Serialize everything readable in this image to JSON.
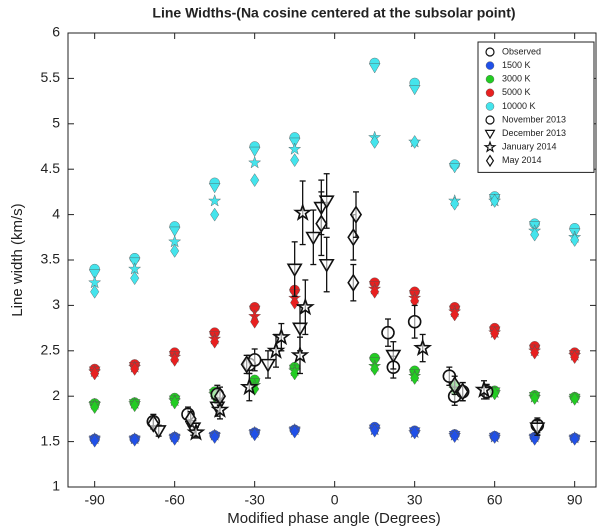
{
  "chart_data": {
    "type": "scatter",
    "title": "Line Widths-(Na cosine centered at the subsolar point)",
    "x_label": "Modified phase angle (Degrees)",
    "y_label": "Line width (km/s)",
    "xlim": [
      -100,
      98
    ],
    "ylim": [
      1,
      6
    ],
    "xticks": [
      -90,
      -60,
      -30,
      0,
      30,
      60,
      90
    ],
    "yticks": [
      1,
      1.5,
      2,
      2.5,
      3,
      3.5,
      4,
      4.5,
      5,
      5.5,
      6
    ],
    "legend": "upper right",
    "observed_label": "Observed",
    "model_x": [
      -90,
      -75,
      -60,
      -45,
      -30,
      -15,
      15,
      30,
      45,
      60,
      75,
      90
    ],
    "models": [
      {
        "name": "1500 K",
        "color": "#2050e8",
        "values": [
          [
            1.53,
            1.53,
            1.55,
            1.57,
            1.6,
            1.63,
            1.66,
            1.62,
            1.58,
            1.56,
            1.55,
            1.54
          ],
          [
            1.52,
            1.52,
            1.54,
            1.56,
            1.59,
            1.62,
            1.64,
            1.61,
            1.57,
            1.55,
            1.54,
            1.53
          ],
          [
            1.53,
            1.53,
            1.55,
            1.57,
            1.6,
            1.63,
            1.63,
            1.6,
            1.57,
            1.55,
            1.55,
            1.54
          ],
          [
            1.51,
            1.52,
            1.53,
            1.55,
            1.58,
            1.61,
            1.62,
            1.6,
            1.56,
            1.55,
            1.53,
            1.53
          ]
        ]
      },
      {
        "name": "3000 K",
        "color": "#22cc22",
        "values": [
          [
            1.92,
            1.93,
            1.98,
            2.05,
            2.18,
            2.32,
            2.42,
            2.28,
            2.12,
            2.06,
            2.01,
            1.99
          ],
          [
            1.9,
            1.92,
            1.96,
            2.03,
            2.15,
            2.3,
            2.38,
            2.25,
            2.1,
            2.05,
            2,
            1.98
          ],
          [
            1.91,
            1.92,
            1.95,
            2.02,
            2.12,
            2.28,
            2.33,
            2.22,
            2.08,
            2.04,
            1.99,
            1.98
          ],
          [
            1.88,
            1.9,
            1.93,
            2,
            2.08,
            2.25,
            2.3,
            2.2,
            2.06,
            2.03,
            1.98,
            1.97
          ]
        ]
      },
      {
        "name": "5000 K",
        "color": "#e82020",
        "values": [
          [
            2.3,
            2.35,
            2.48,
            2.7,
            2.98,
            3.17,
            3.25,
            3.15,
            2.98,
            2.75,
            2.55,
            2.48
          ],
          [
            2.28,
            2.33,
            2.45,
            2.67,
            2.95,
            3.13,
            3.22,
            3.12,
            2.95,
            2.72,
            2.52,
            2.46
          ],
          [
            2.27,
            2.32,
            2.43,
            2.63,
            2.88,
            3.08,
            3.18,
            3.08,
            2.93,
            2.7,
            2.5,
            2.45
          ],
          [
            2.25,
            2.3,
            2.4,
            2.6,
            2.82,
            3.03,
            3.15,
            3.05,
            2.9,
            2.69,
            2.48,
            2.43
          ]
        ]
      },
      {
        "name": "10000 K",
        "color": "#44e4ec",
        "values": [
          [
            3.4,
            3.52,
            3.87,
            4.35,
            4.75,
            4.85,
            5.67,
            5.45,
            4.55,
            4.2,
            3.9,
            3.85
          ],
          [
            3.35,
            3.48,
            3.82,
            4.3,
            4.7,
            4.8,
            5.62,
            5.38,
            4.52,
            4.18,
            3.88,
            3.8
          ],
          [
            3.25,
            3.4,
            3.7,
            4.15,
            4.57,
            4.72,
            4.85,
            4.8,
            4.15,
            4.15,
            3.82,
            3.75
          ],
          [
            3.15,
            3.3,
            3.6,
            4,
            4.38,
            4.6,
            4.8,
            4.8,
            4.12,
            4.15,
            3.78,
            3.72
          ]
        ]
      }
    ],
    "series": [
      {
        "name": "November 2013",
        "marker": "circle",
        "x": [
          -68,
          -55,
          -44,
          -32,
          -30,
          20,
          22,
          30,
          43,
          45,
          48,
          57,
          76
        ],
        "values": [
          1.72,
          1.8,
          2.02,
          2.35,
          2.4,
          2.7,
          2.32,
          2.82,
          2.22,
          2,
          2.05,
          2.05,
          1.68
        ],
        "errors": [
          0.08,
          0.08,
          0.1,
          0.1,
          0.12,
          0.15,
          0.12,
          0.18,
          0.1,
          0.1,
          0.1,
          0.08,
          0.08
        ]
      },
      {
        "name": "December 2013",
        "marker": "triangle",
        "x": [
          -66,
          -53,
          -44,
          -25,
          -15,
          -13,
          -8,
          -5,
          -3,
          -3,
          22,
          76
        ],
        "values": [
          1.62,
          1.65,
          1.88,
          2.35,
          3.4,
          2.75,
          3.75,
          4.08,
          4.15,
          3.45,
          2.45,
          1.65
        ],
        "errors": [
          0.06,
          0.08,
          0.1,
          0.15,
          0.3,
          0.25,
          0.3,
          0.3,
          0.3,
          0.3,
          0.15,
          0.08
        ]
      },
      {
        "name": "January 2014",
        "marker": "star",
        "x": [
          -52,
          -43,
          -32,
          -22,
          -20,
          -12,
          -13,
          -11,
          33,
          56
        ],
        "values": [
          1.6,
          1.85,
          2.1,
          2.5,
          2.65,
          4.02,
          2.45,
          2.98,
          2.53,
          2.07
        ],
        "errors": [
          0.06,
          0.1,
          0.15,
          0.18,
          0.15,
          0.35,
          0.2,
          0.3,
          0.15,
          0.1
        ]
      },
      {
        "name": "May 2014",
        "marker": "diamond",
        "x": [
          -68,
          -54,
          -43,
          -33,
          -5,
          7,
          7,
          8,
          45,
          48
        ],
        "values": [
          1.7,
          1.75,
          2,
          2.35,
          3.9,
          3.25,
          3.75,
          4,
          2.12,
          2.05
        ],
        "errors": [
          0.06,
          0.08,
          0.1,
          0.1,
          0.35,
          0.2,
          0.25,
          0.25,
          0.1,
          0.1
        ]
      }
    ]
  }
}
